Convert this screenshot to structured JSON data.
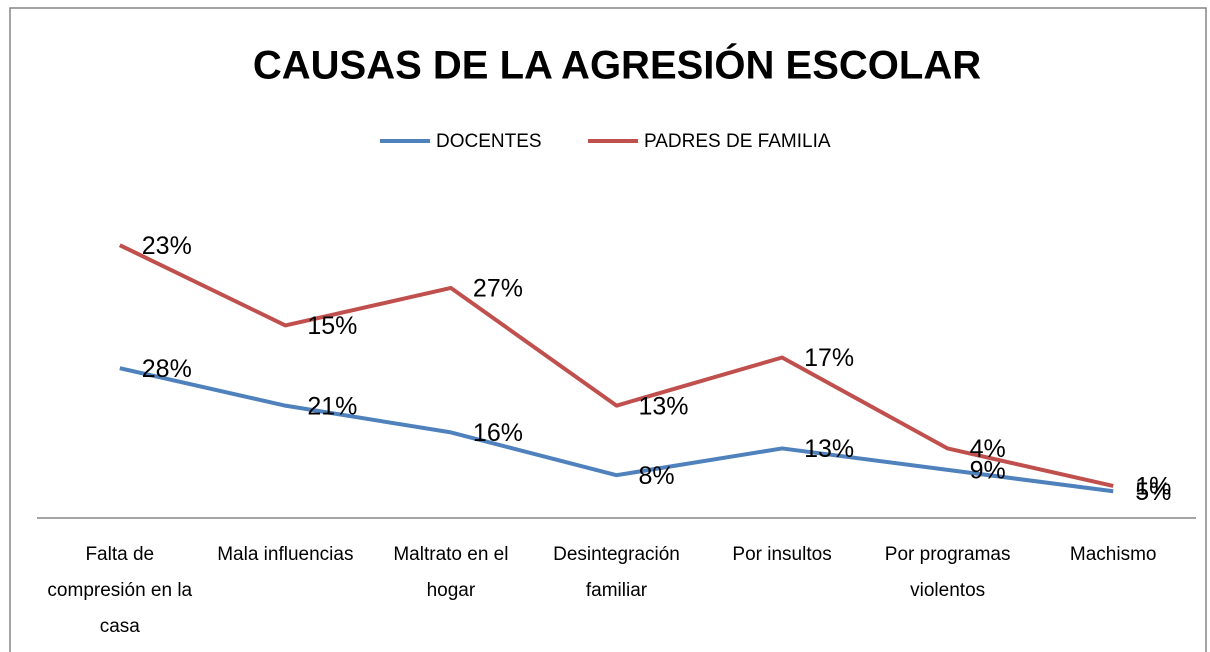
{
  "chart_data": {
    "type": "line",
    "stacked": true,
    "title": "CAUSAS DE LA AGRESIÓN ESCOLAR",
    "categories": [
      "Falta de compresión en la casa",
      "Mala influencias",
      "Maltrato en el hogar",
      "Desintegración familiar",
      "Por insultos",
      "Por programas violentos",
      "Machismo"
    ],
    "series": [
      {
        "name": "DOCENTES",
        "color": "#4f81bd",
        "values": [
          28,
          21,
          16,
          8,
          13,
          9,
          5
        ],
        "value_labels": [
          "28%",
          "21%",
          "16%",
          "8%",
          "13%",
          "9%",
          "5%"
        ]
      },
      {
        "name": "PADRES DE FAMILIA",
        "color": "#c0504d",
        "values": [
          23,
          15,
          27,
          13,
          17,
          4,
          1
        ],
        "value_labels": [
          "23%",
          "15%",
          "27%",
          "13%",
          "17%",
          "4%",
          "1%"
        ]
      }
    ],
    "ylim": [
      0,
      60
    ],
    "legend": "top"
  }
}
